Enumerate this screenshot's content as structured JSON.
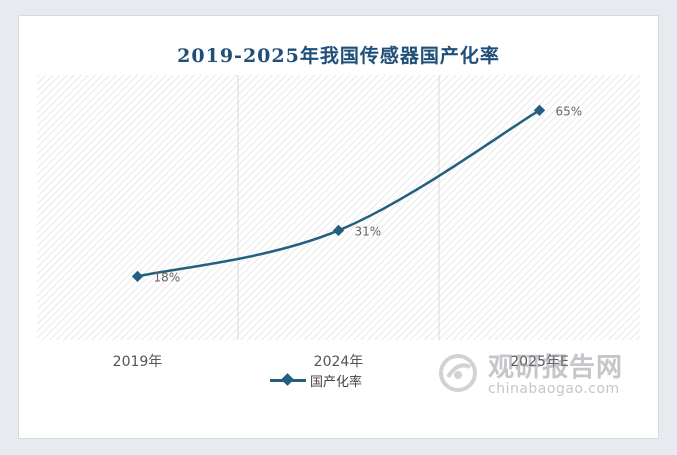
{
  "colors": {
    "title": "#1f4e79",
    "series": "#23607f",
    "axis_text": "#555555",
    "label_text": "#666666",
    "gridline": "#d9d9d9"
  },
  "chart_data": {
    "type": "line",
    "title": "2019-2025年我国传感器国产化率",
    "categories": [
      "2019年",
      "2024年",
      "2025年E"
    ],
    "series": [
      {
        "name": "国产化率",
        "values": [
          18,
          31,
          65
        ],
        "labels": [
          "18%",
          "31%",
          "65%"
        ]
      }
    ],
    "ylim": [
      0,
      75
    ],
    "grid": "vertical",
    "legend": "bottom-center",
    "marker": "diamond"
  },
  "watermark": {
    "brand_cn": "观研报告网",
    "brand_en": "chinabaogao.com"
  }
}
